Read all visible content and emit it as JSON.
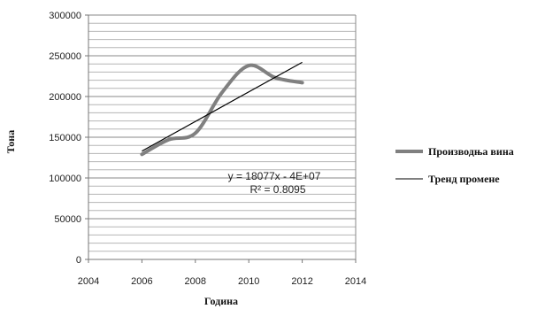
{
  "chart_data": {
    "type": "line",
    "xlabel": "Година",
    "ylabel": "Тона",
    "xlim": [
      2004,
      2014
    ],
    "ylim": [
      0,
      300000
    ],
    "xticks": [
      "2004",
      "2006",
      "2008",
      "2010",
      "2012",
      "2014"
    ],
    "yticks": [
      "0",
      "50000",
      "100000",
      "150000",
      "200000",
      "250000",
      "300000"
    ],
    "grid": true,
    "legend_position": "right",
    "series": [
      {
        "name": "Производња вина",
        "color": "#808080",
        "smooth": true,
        "x": [
          2006,
          2007,
          2008,
          2009,
          2010,
          2011,
          2012
        ],
        "y": [
          129000,
          147000,
          155000,
          205000,
          238000,
          223000,
          217000
        ]
      },
      {
        "name": "Тренд промене",
        "color": "#000000",
        "type": "linear-trend",
        "x": [
          2006,
          2012
        ],
        "y": [
          133000,
          242000
        ]
      }
    ],
    "annotations": {
      "equation": "y = 18077x - 4E+07",
      "r_squared": "R² = 0.8095"
    }
  }
}
